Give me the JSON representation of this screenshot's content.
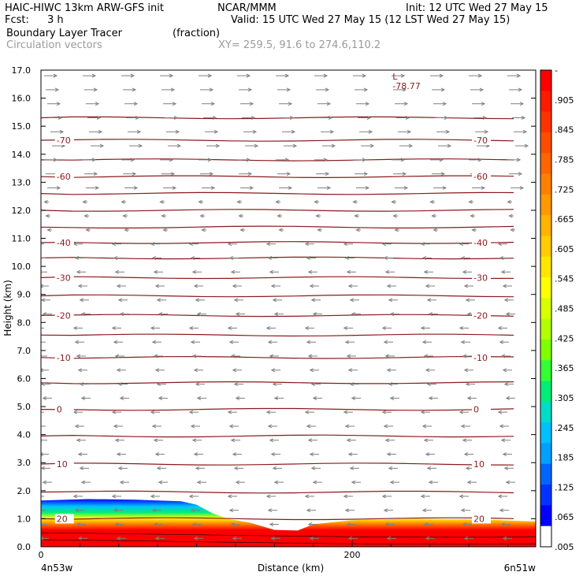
{
  "header": {
    "model": "HAIC-HIWC 13km ARW-GFS init",
    "org": "NCAR/MMM",
    "init": "Init: 12 UTC Wed 27 May 15",
    "fcst_label": "Fcst:",
    "fcst_value": "3 h",
    "valid": "Valid: 15 UTC Wed 27 May 15 (12 LST Wed 27 May 15)",
    "field1_name": "Boundary Layer Tracer",
    "field1_units": "(fraction)",
    "field2_name": "Circulation vectors",
    "xy": "XY= 259.5, 91.6 to 274.6,110.2"
  },
  "colors": {
    "contour": "#8b1a1a",
    "vector": "#7f7f7f",
    "axis": "#000000"
  },
  "chart_data": {
    "type": "cross-section",
    "xlabel": "Distance (km)",
    "ylabel": "Height (km)",
    "xlim": [
      0,
      318
    ],
    "ylim": [
      0,
      17
    ],
    "xticks": [
      0,
      200
    ],
    "x_end_labels": {
      "left": "4n53w",
      "right": "6n51w"
    },
    "yticks": [
      "0.0",
      "1.0",
      "2.0",
      "3.0",
      "4.0",
      "5.0",
      "6.0",
      "7.0",
      "8.0",
      "9.0",
      "10.0",
      "11.0",
      "12.0",
      "13.0",
      "14.0",
      "15.0",
      "16.0",
      "17.0"
    ],
    "low_marker": {
      "symbol": "L",
      "label": "-78.77",
      "x_km": 228,
      "height_km": 16.6
    },
    "temperature_contours": [
      {
        "value": -70,
        "label": "-70",
        "height_km": 14.5
      },
      {
        "value": -60,
        "label": "-60",
        "height_km": 13.2
      },
      {
        "value": -40,
        "label": "-40",
        "height_km": 10.85
      },
      {
        "value": -30,
        "label": "-30",
        "height_km": 9.6
      },
      {
        "value": -20,
        "label": "-20",
        "height_km": 8.25
      },
      {
        "value": -10,
        "label": "-10",
        "height_km": 6.75
      },
      {
        "value": 0,
        "label": "0",
        "height_km": 4.9
      },
      {
        "value": 10,
        "label": "10",
        "height_km": 2.95
      },
      {
        "value": 20,
        "label": "20",
        "height_km": 1.0
      }
    ],
    "unlabeled_contour_heights_km": [
      15.3,
      13.8,
      12.6,
      12.0,
      11.4,
      10.3,
      8.95,
      7.55,
      5.85,
      3.95,
      1.95
    ],
    "contour_label_positions_km": {
      "left": 10,
      "right": 278
    },
    "tracer_top_height_km": [
      [
        0,
        1.65
      ],
      [
        30,
        1.7
      ],
      [
        60,
        1.68
      ],
      [
        90,
        1.62
      ],
      [
        100,
        1.5
      ],
      [
        110,
        1.2
      ],
      [
        120,
        1.0
      ],
      [
        135,
        0.85
      ],
      [
        150,
        0.6
      ],
      [
        165,
        0.58
      ],
      [
        175,
        0.8
      ],
      [
        200,
        0.95
      ],
      [
        240,
        1.0
      ],
      [
        280,
        0.98
      ],
      [
        318,
        0.9
      ]
    ],
    "colorbar_labels": [
      "-",
      ".905",
      ".845",
      ".785",
      ".725",
      ".665",
      ".605",
      ".545",
      ".485",
      ".425",
      ".365",
      ".305",
      ".245",
      ".185",
      ".125",
      ".065",
      ".005"
    ],
    "colorbar_colors": [
      "#ff0000",
      "#ff1a00",
      "#ff3300",
      "#ff4d00",
      "#ff6600",
      "#ff8000",
      "#ff9900",
      "#ffb300",
      "#ffcc00",
      "#ffe600",
      "#ffff00",
      "#d9ff00",
      "#b3ff00",
      "#80ff00",
      "#33ff33",
      "#00ee77",
      "#00dcc8",
      "#00c0ff",
      "#00a0ff",
      "#0066ff",
      "#0033ff",
      "#0000ff",
      "#ffffff"
    ],
    "vector_layers": [
      {
        "height_km_range": [
          12.6,
          17.0
        ],
        "u": 1.0,
        "w": 0.0
      },
      {
        "height_km_range": [
          11.0,
          12.6
        ],
        "u": -0.35,
        "w": 0.0
      },
      {
        "height_km_range": [
          0.0,
          11.0
        ],
        "u": -0.7,
        "w": 0.0
      }
    ]
  }
}
